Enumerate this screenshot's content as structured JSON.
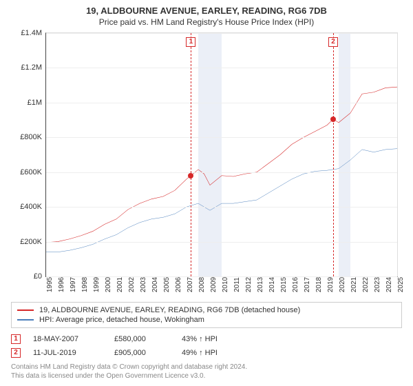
{
  "title": "19, ALDBOURNE AVENUE, EARLEY, READING, RG6 7DB",
  "subtitle": "Price paid vs. HM Land Registry's House Price Index (HPI)",
  "chart": {
    "type": "line",
    "background_color": "#ffffff",
    "grid_color": "#eeeeee",
    "axis_color": "#444444",
    "shaded_ranges": [
      {
        "x0": 2008,
        "x1": 2010,
        "color": "rgba(120,150,200,0.15)"
      },
      {
        "x0": 2020,
        "x1": 2021,
        "color": "rgba(120,150,200,0.15)"
      }
    ],
    "x": {
      "min": 1995,
      "max": 2025,
      "ticks": [
        1995,
        1996,
        1997,
        1998,
        1999,
        2000,
        2001,
        2002,
        2003,
        2004,
        2005,
        2006,
        2007,
        2008,
        2009,
        2010,
        2011,
        2012,
        2013,
        2014,
        2015,
        2016,
        2017,
        2018,
        2019,
        2020,
        2021,
        2022,
        2023,
        2024,
        2025
      ],
      "label_fontsize": 10
    },
    "y": {
      "min": 0,
      "max": 1400000,
      "ticks": [
        {
          "v": 0,
          "label": "£0"
        },
        {
          "v": 200000,
          "label": "£200K"
        },
        {
          "v": 400000,
          "label": "£400K"
        },
        {
          "v": 600000,
          "label": "£600K"
        },
        {
          "v": 800000,
          "label": "£800K"
        },
        {
          "v": 1000000,
          "label": "£1M"
        },
        {
          "v": 1200000,
          "label": "£1.2M"
        },
        {
          "v": 1400000,
          "label": "£1.4M"
        }
      ],
      "label_fontsize": 11
    },
    "series": [
      {
        "id": "property",
        "label": "19, ALDBOURNE AVENUE, EARLEY, READING, RG6 7DB (detached house)",
        "color": "#d62728",
        "line_width": 1.6,
        "data": [
          [
            1995,
            195000
          ],
          [
            1996,
            200000
          ],
          [
            1997,
            215000
          ],
          [
            1998,
            235000
          ],
          [
            1999,
            260000
          ],
          [
            2000,
            300000
          ],
          [
            2001,
            330000
          ],
          [
            2002,
            385000
          ],
          [
            2003,
            420000
          ],
          [
            2004,
            445000
          ],
          [
            2005,
            460000
          ],
          [
            2006,
            495000
          ],
          [
            2007,
            560000
          ],
          [
            2007.38,
            580000
          ],
          [
            2008,
            615000
          ],
          [
            2008.5,
            590000
          ],
          [
            2009,
            525000
          ],
          [
            2010,
            580000
          ],
          [
            2011,
            575000
          ],
          [
            2012,
            590000
          ],
          [
            2013,
            600000
          ],
          [
            2014,
            650000
          ],
          [
            2015,
            700000
          ],
          [
            2016,
            760000
          ],
          [
            2017,
            800000
          ],
          [
            2018,
            835000
          ],
          [
            2019,
            870000
          ],
          [
            2019.53,
            905000
          ],
          [
            2020,
            885000
          ],
          [
            2021,
            940000
          ],
          [
            2022,
            1050000
          ],
          [
            2023,
            1060000
          ],
          [
            2024,
            1085000
          ],
          [
            2025,
            1090000
          ]
        ]
      },
      {
        "id": "hpi",
        "label": "HPI: Average price, detached house, Wokingham",
        "color": "#4a7ebb",
        "line_width": 1.4,
        "data": [
          [
            1995,
            140000
          ],
          [
            1996,
            140000
          ],
          [
            1997,
            150000
          ],
          [
            1998,
            165000
          ],
          [
            1999,
            185000
          ],
          [
            2000,
            215000
          ],
          [
            2001,
            240000
          ],
          [
            2002,
            280000
          ],
          [
            2003,
            310000
          ],
          [
            2004,
            330000
          ],
          [
            2005,
            340000
          ],
          [
            2006,
            360000
          ],
          [
            2007,
            400000
          ],
          [
            2008,
            420000
          ],
          [
            2009,
            380000
          ],
          [
            2010,
            420000
          ],
          [
            2011,
            420000
          ],
          [
            2012,
            430000
          ],
          [
            2013,
            440000
          ],
          [
            2014,
            480000
          ],
          [
            2015,
            520000
          ],
          [
            2016,
            560000
          ],
          [
            2017,
            590000
          ],
          [
            2018,
            605000
          ],
          [
            2019,
            610000
          ],
          [
            2020,
            620000
          ],
          [
            2021,
            670000
          ],
          [
            2022,
            730000
          ],
          [
            2023,
            715000
          ],
          [
            2024,
            730000
          ],
          [
            2025,
            735000
          ]
        ]
      }
    ],
    "sale_markers": [
      {
        "index": "1",
        "x": 2007.38,
        "y": 580000,
        "color": "#d62728"
      },
      {
        "index": "2",
        "x": 2019.53,
        "y": 905000,
        "color": "#d62728"
      }
    ]
  },
  "sales": [
    {
      "index": "1",
      "date": "18-MAY-2007",
      "price": "£580,000",
      "delta": "43% ↑ HPI"
    },
    {
      "index": "2",
      "date": "11-JUL-2019",
      "price": "£905,000",
      "delta": "49% ↑ HPI"
    }
  ],
  "footer": {
    "line1": "Contains HM Land Registry data © Crown copyright and database right 2024.",
    "line2": "This data is licensed under the Open Government Licence v3.0."
  }
}
